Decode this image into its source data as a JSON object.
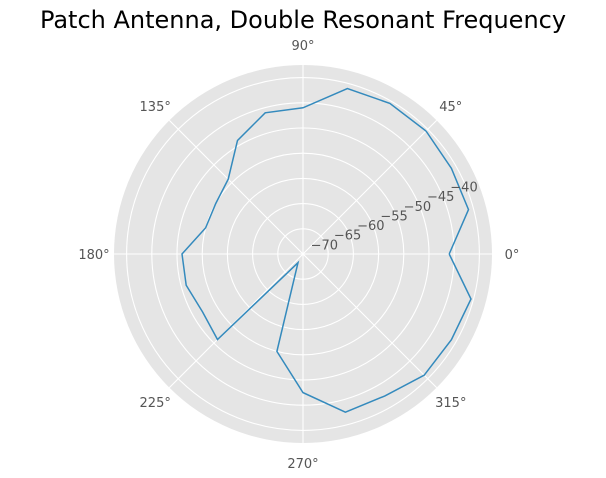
{
  "chart_data": {
    "type": "line",
    "projection": "polar",
    "title": "Patch Antenna, Double Resonant Frequency",
    "r_range": [
      -75,
      -37.5
    ],
    "r_ticks": [
      -70,
      -65,
      -60,
      -55,
      -50,
      -45,
      -40
    ],
    "r_tick_labels": [
      "−70",
      "−65",
      "−60",
      "−55",
      "−50",
      "−45",
      "−40"
    ],
    "theta_ticks_deg": [
      0,
      45,
      90,
      135,
      180,
      225,
      270,
      315
    ],
    "theta_tick_labels": [
      "0°",
      "45°",
      "90°",
      "135°",
      "180°",
      "225°",
      "270°",
      "315°"
    ],
    "grid": true,
    "background": "#e5e5e5",
    "line_color": "#348abd",
    "series": [
      {
        "theta_deg": [
          0,
          15,
          30,
          45,
          60,
          75,
          90,
          105,
          120,
          135,
          150,
          165,
          180,
          195,
          210,
          225,
          240,
          255,
          270,
          285,
          300,
          315,
          330,
          345,
          360
        ],
        "r": [
          -46,
          -41,
          -41,
          -40.5,
          -40.5,
          -41,
          -46,
          -46,
          -49,
          -54,
          -55,
          -55,
          -51,
          -51,
          -52,
          -51,
          -73,
          -55,
          -47.5,
          -42.5,
          -42.5,
          -41,
          -41,
          -40.5,
          -46
        ]
      }
    ]
  }
}
